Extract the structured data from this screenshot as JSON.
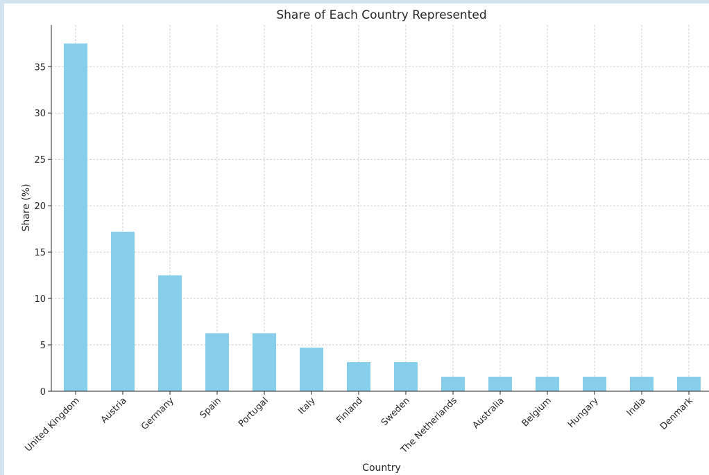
{
  "chart_data": {
    "type": "bar",
    "title": "Share of Each Country Represented",
    "xlabel": "Country",
    "ylabel": "Share (%)",
    "categories": [
      "United Kingdom",
      "Austria",
      "Germany",
      "Spain",
      "Portugal",
      "Italy",
      "Finland",
      "Sweden",
      "The Netherlands",
      "Australia",
      "Belgium",
      "Hungary",
      "India",
      "Denmark"
    ],
    "values": [
      37.5,
      17.19,
      12.5,
      6.25,
      6.25,
      4.69,
      3.13,
      3.13,
      1.56,
      1.56,
      1.56,
      1.56,
      1.56,
      1.56
    ],
    "ylim": [
      0,
      39.5
    ],
    "yticks": [
      0,
      5,
      10,
      15,
      20,
      25,
      30,
      35
    ],
    "grid": true,
    "legend": "none",
    "bar_color": "#87ceeb"
  }
}
